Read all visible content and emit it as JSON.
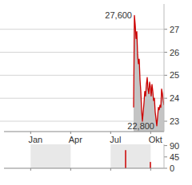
{
  "chart_data": [
    {
      "type": "line",
      "x": [
        7.72,
        7.78,
        7.84,
        7.9,
        7.96,
        8.02,
        8.08,
        8.14,
        8.2,
        8.26,
        8.32,
        8.38,
        8.44,
        8.5,
        8.56,
        8.62,
        8.68,
        8.74,
        8.8,
        8.86,
        8.92,
        8.98,
        9.04,
        9.1,
        9.16,
        9.22,
        9.28,
        9.34,
        9.4,
        9.46,
        9.52,
        9.58,
        9.64,
        9.7,
        9.76,
        9.82,
        9.88,
        9.94,
        10.0
      ],
      "values": [
        23.6,
        27.6,
        27.2,
        26.6,
        26.9,
        25.9,
        25.5,
        25.7,
        24.8,
        24.3,
        23.5,
        23.0,
        23.4,
        23.8,
        24.3,
        24.1,
        24.6,
        24.9,
        24.4,
        24.2,
        24.7,
        24.5,
        24.1,
        24.6,
        24.3,
        23.9,
        24.0,
        23.4,
        23.1,
        22.8,
        23.2,
        23.6,
        23.5,
        23.7,
        23.6,
        24.4,
        24.2,
        23.9,
        23.7
      ],
      "color": "#cc0000",
      "xlim": [
        -2,
        10
      ],
      "xticks": [
        {
          "value": 0,
          "label": "Jan"
        },
        {
          "value": 3,
          "label": "Apr"
        },
        {
          "value": 6,
          "label": "Jul"
        },
        {
          "value": 9,
          "label": "Okt"
        }
      ],
      "ylim": [
        22.55,
        28.1
      ],
      "yticks": [
        23,
        24,
        25,
        26,
        27
      ],
      "grid": true,
      "annotations": [
        {
          "text": "27,600",
          "x": 7.78,
          "y": 27.6
        },
        {
          "text": "22,800",
          "x": 9.46,
          "y": 22.8
        }
      ]
    },
    {
      "type": "bar",
      "x": [
        7.12,
        8.98
      ],
      "values": [
        72,
        25
      ],
      "color": "#cc0000",
      "xlim": [
        -2,
        10
      ],
      "xticks": [
        0,
        3,
        6,
        9
      ],
      "ylim": [
        0,
        95
      ],
      "yticks": [
        0,
        45,
        90
      ],
      "tick_labels": "y"
    }
  ]
}
